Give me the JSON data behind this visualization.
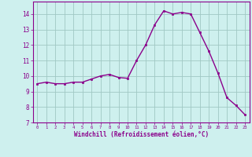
{
  "x": [
    0,
    1,
    2,
    3,
    4,
    5,
    6,
    7,
    8,
    9,
    10,
    11,
    12,
    13,
    14,
    15,
    16,
    17,
    18,
    19,
    20,
    21,
    22,
    23
  ],
  "y": [
    9.5,
    9.6,
    9.5,
    9.5,
    9.6,
    9.6,
    9.8,
    10.0,
    10.1,
    9.9,
    9.85,
    11.0,
    12.0,
    13.3,
    14.2,
    14.0,
    14.1,
    14.0,
    12.8,
    11.6,
    10.2,
    8.6,
    8.1,
    7.5
  ],
  "xlabel": "Windchill (Refroidissement éolien,°C)",
  "xlim": [
    -0.5,
    23.5
  ],
  "ylim": [
    7,
    14.8
  ],
  "yticks": [
    7,
    8,
    9,
    10,
    11,
    12,
    13,
    14
  ],
  "xticks": [
    0,
    1,
    2,
    3,
    4,
    5,
    6,
    7,
    8,
    9,
    10,
    11,
    12,
    13,
    14,
    15,
    16,
    17,
    18,
    19,
    20,
    21,
    22,
    23
  ],
  "line_color": "#8B008B",
  "marker_color": "#8B008B",
  "bg_color": "#cef0ee",
  "grid_color": "#a0c8c4",
  "xlabel_color": "#8B008B",
  "tick_color": "#8B008B",
  "spine_color": "#8B008B"
}
